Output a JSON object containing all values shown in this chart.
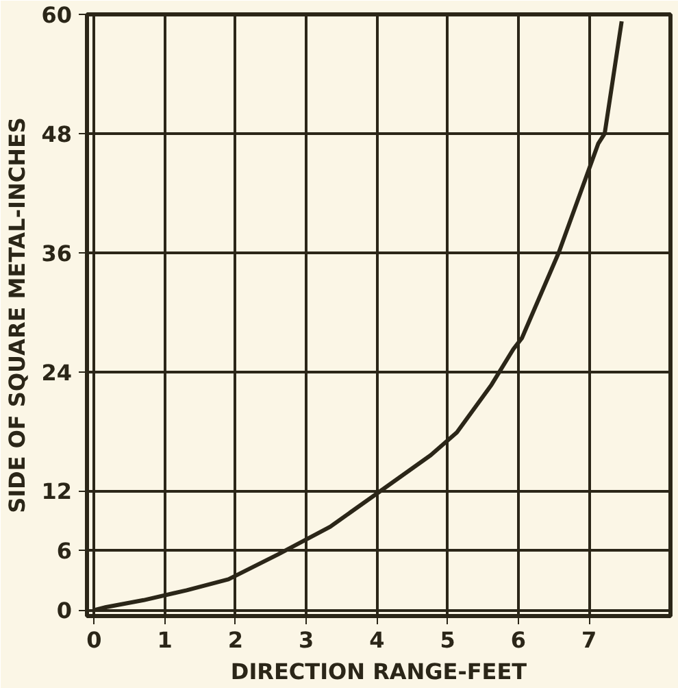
{
  "chart_data": {
    "type": "line",
    "xlabel": "DIRECTION RANGE-FEET",
    "ylabel": "SIDE OF SQUARE METAL-INCHES",
    "x": [
      0,
      0.17,
      0.7,
      1.31,
      1.9,
      2.6,
      3.34,
      4.05,
      4.76,
      5.13,
      5.62,
      5.93,
      6.05,
      6.57,
      7.13,
      7.22,
      7.46
    ],
    "series": [
      {
        "color": "#2b2618",
        "values": [
          0,
          0.3,
          1,
          2,
          3.1,
          5.6,
          8.4,
          12,
          15.6,
          17.9,
          22.7,
          26.3,
          27.4,
          36,
          47,
          48,
          59.3
        ]
      }
    ],
    "xlim": [
      -0.1,
      8.15
    ],
    "ylim": [
      -0.6,
      60
    ],
    "xticks": [
      0,
      1,
      2,
      3,
      4,
      5,
      6,
      7
    ],
    "yticks": [
      0,
      6,
      12,
      24,
      36,
      48,
      60
    ],
    "grid": true,
    "marker": "none",
    "line_style": "solid"
  }
}
